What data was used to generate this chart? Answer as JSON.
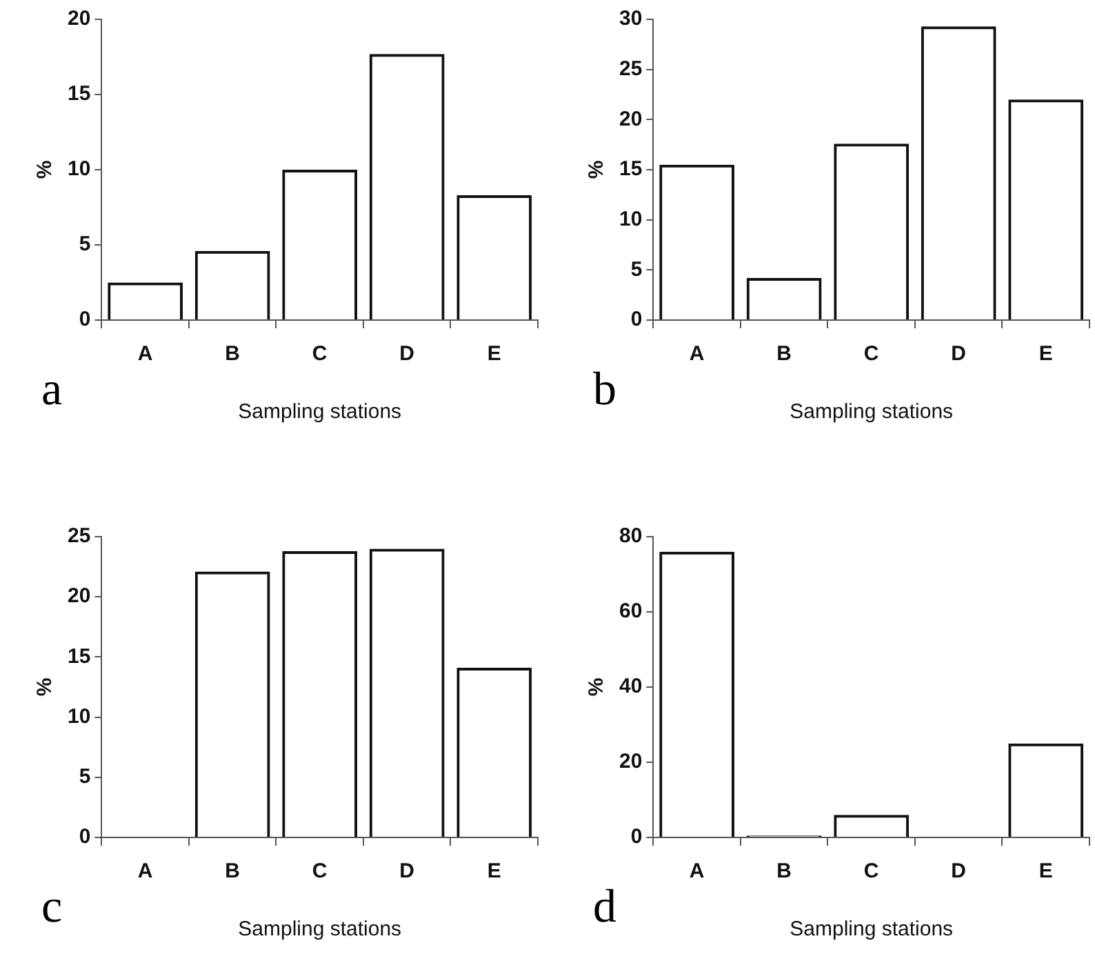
{
  "chart_data": [
    {
      "type": "bar",
      "categories": [
        "A",
        "B",
        "C",
        "D",
        "E"
      ],
      "values": [
        2.5,
        4.6,
        10,
        17.7,
        8.3
      ],
      "color": "#111111",
      "xlabel": "Sampling stations",
      "ylabel": "%",
      "ylim": [
        0,
        20
      ],
      "yticks": [
        0,
        5,
        10,
        15,
        20
      ],
      "grid": false,
      "legend": false,
      "annotations": [
        "a"
      ]
    },
    {
      "type": "bar",
      "categories": [
        "A",
        "B",
        "C",
        "D",
        "E"
      ],
      "values": [
        15.5,
        4.2,
        17.6,
        29.3,
        22
      ],
      "color": "#111111",
      "xlabel": "Sampling stations",
      "ylabel": "%",
      "ylim": [
        0,
        30
      ],
      "yticks": [
        0,
        5,
        10,
        15,
        20,
        25,
        30
      ],
      "grid": false,
      "legend": false,
      "annotations": [
        "b"
      ]
    },
    {
      "type": "bar",
      "categories": [
        "A",
        "B",
        "C",
        "D",
        "E"
      ],
      "values": [
        0,
        22.1,
        23.8,
        24,
        14.1
      ],
      "color": "#111111",
      "xlabel": "Sampling stations",
      "ylabel": "%",
      "ylim": [
        0,
        25
      ],
      "yticks": [
        0,
        5,
        10,
        15,
        20,
        25
      ],
      "grid": false,
      "legend": false,
      "annotations": [
        "c"
      ]
    },
    {
      "type": "bar",
      "categories": [
        "A",
        "B",
        "C",
        "D",
        "E"
      ],
      "values": [
        76,
        0.5,
        6,
        0,
        25
      ],
      "color": "#111111",
      "xlabel": "Sampling stations",
      "ylabel": "%",
      "ylim": [
        0,
        80
      ],
      "yticks": [
        0,
        20,
        40,
        60,
        80
      ],
      "grid": false,
      "legend": false,
      "annotations": [
        "d"
      ]
    }
  ]
}
